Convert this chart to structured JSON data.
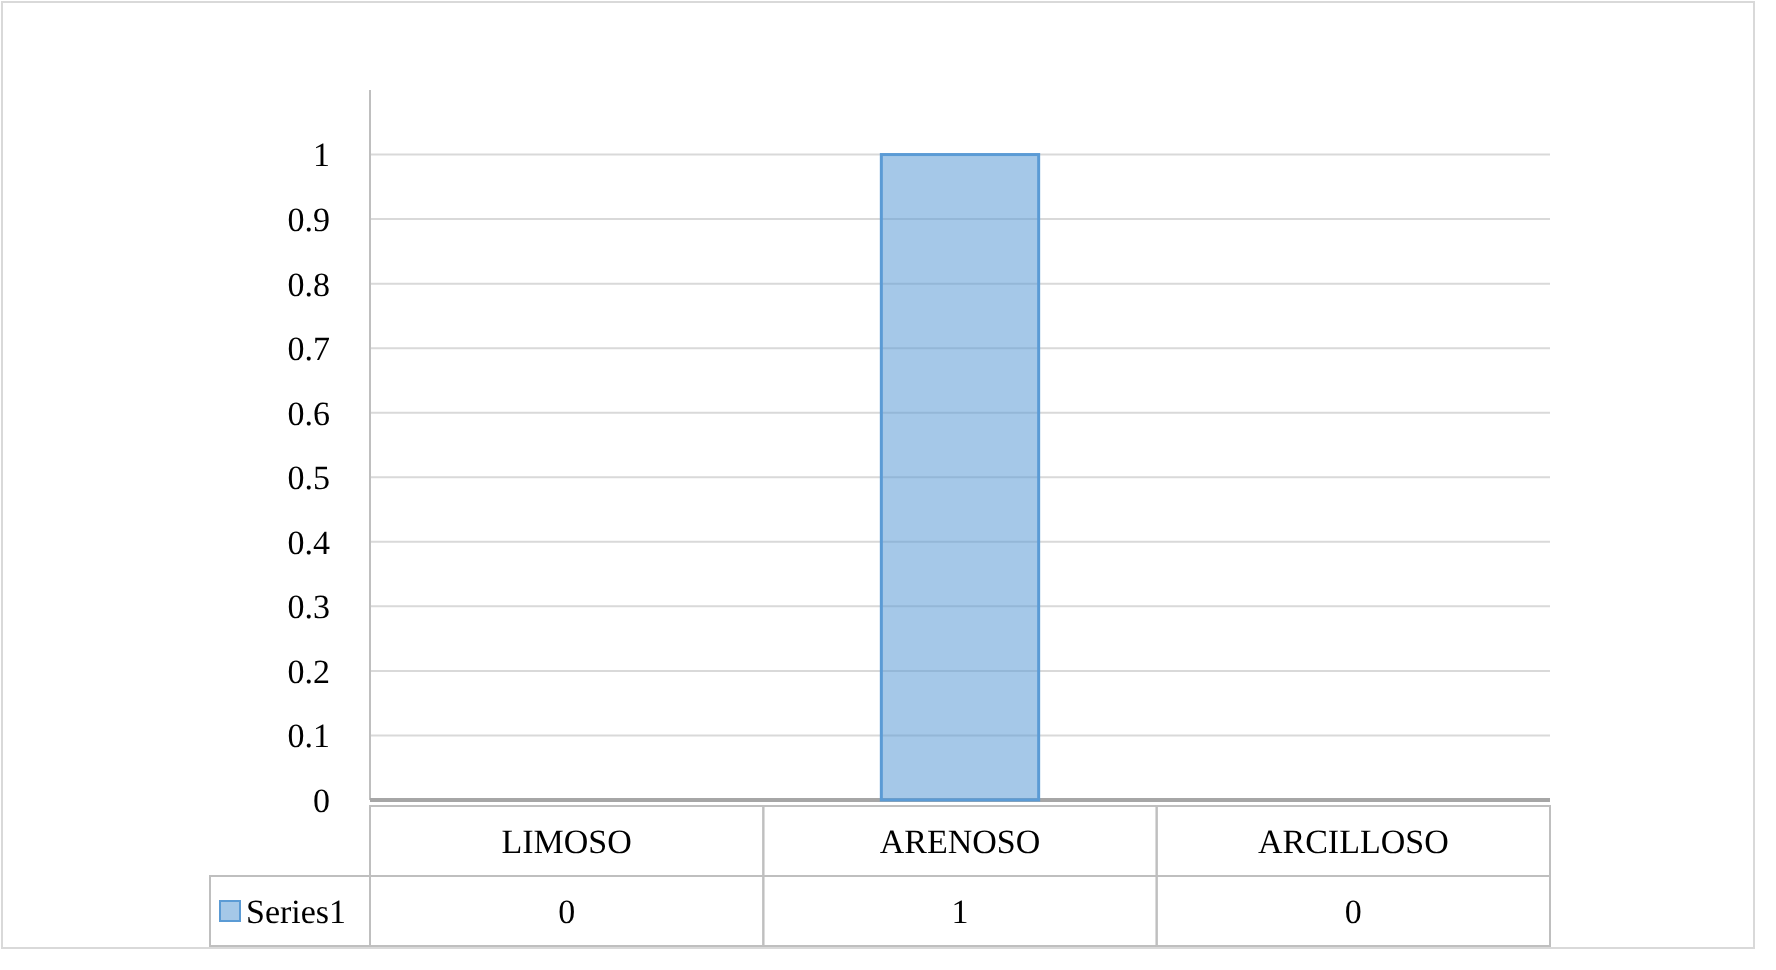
{
  "chart_data": {
    "type": "bar",
    "categories": [
      "LIMOSO",
      "ARENOSO",
      "ARCILLOSO"
    ],
    "series": [
      {
        "name": "Series1",
        "color": "#5b9bd5",
        "values": [
          0,
          1,
          0
        ]
      }
    ],
    "ylim": [
      0,
      1.1
    ],
    "yticks": [
      0,
      0.1,
      0.2,
      0.3,
      0.4,
      0.5,
      0.6,
      0.7,
      0.8,
      0.9,
      1
    ],
    "grid": "y",
    "data_labels": true,
    "legend": "bottom"
  }
}
